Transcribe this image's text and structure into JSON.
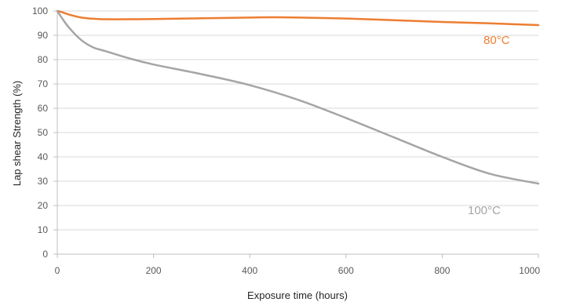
{
  "chart_data": {
    "type": "line",
    "title": "",
    "xlabel": "Exposure time (hours)",
    "ylabel": "Lap shear Strength (%)",
    "xlim": [
      0,
      1000
    ],
    "ylim": [
      0,
      100
    ],
    "xticks": [
      "0",
      "200",
      "400",
      "600",
      "800",
      "1000"
    ],
    "yticks": [
      "0",
      "10",
      "20",
      "30",
      "40",
      "50",
      "60",
      "70",
      "80",
      "90",
      "100"
    ],
    "grid": "horizontal",
    "legend": "none (direct labels)",
    "series": [
      {
        "name": "80°C",
        "color": "#ED7D31",
        "x": [
          0,
          10,
          25,
          50,
          75,
          100,
          150,
          200,
          300,
          400,
          450,
          500,
          600,
          700,
          800,
          900,
          1000
        ],
        "y": [
          100,
          99.5,
          98.5,
          97.3,
          96.8,
          96.6,
          96.6,
          96.7,
          97.0,
          97.3,
          97.4,
          97.3,
          96.9,
          96.2,
          95.5,
          94.9,
          94.2
        ]
      },
      {
        "name": "100°C",
        "color": "#A5A5A5",
        "x": [
          0,
          10,
          25,
          50,
          75,
          100,
          150,
          200,
          300,
          400,
          500,
          600,
          700,
          800,
          900,
          1000
        ],
        "y": [
          100,
          97,
          93,
          88,
          85,
          83.5,
          80.5,
          78,
          74,
          69.5,
          63.5,
          56,
          48,
          40,
          33,
          29
        ]
      }
    ]
  }
}
